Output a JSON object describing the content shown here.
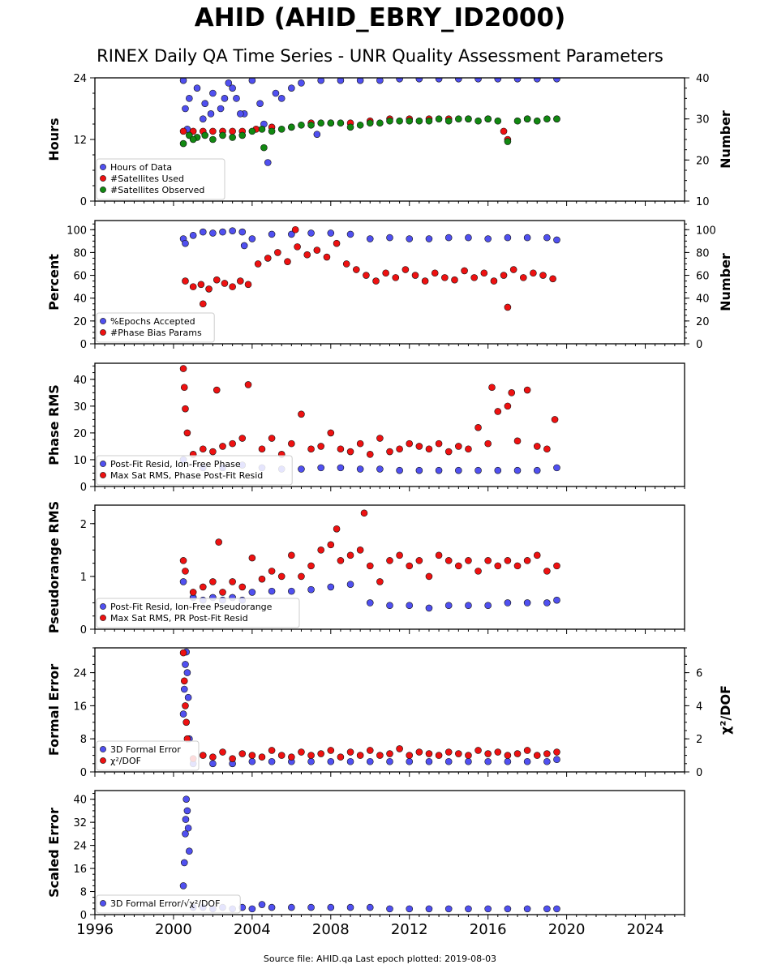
{
  "header": {
    "title": "AHID (AHID_EBRY_ID2000)",
    "subtitle": "RINEX Daily QA Time Series - UNR Quality Assessment Parameters"
  },
  "footer": {
    "text": "Source file: AHID.qa Last epoch plotted: 2019-08-03"
  },
  "colors": {
    "blue": "#5050f0",
    "red": "#ee1111",
    "green": "#118811"
  },
  "chart_data": [
    {
      "type": "scatter",
      "ylabel": "Hours",
      "y2label": "Number",
      "xlim": [
        1996,
        2026
      ],
      "ylim": [
        0,
        24
      ],
      "y2lim": [
        10,
        40
      ],
      "yticks": [
        "0",
        "12",
        "24"
      ],
      "y2ticks": [
        "10",
        "20",
        "30",
        "40"
      ],
      "series": [
        {
          "name": "Hours of Data",
          "color": "blue",
          "axis": "left",
          "x": [
            2000.5,
            2000.8,
            2001.2,
            2001.6,
            2002.0,
            2002.4,
            2002.8,
            2003.2,
            2003.6,
            2004.0,
            2004.4,
            2004.8,
            2005.5,
            2006.5,
            2007.5,
            2008.5,
            2009.5,
            2010.5,
            2011.5,
            2012.5,
            2013.5,
            2014.5,
            2015.5,
            2016.5,
            2017.5,
            2018.5,
            2019.5,
            2000.6,
            2001.5,
            2002.6,
            2003.4,
            2004.6,
            2005.2,
            2006.0,
            2007.3,
            2000.7,
            2001.9,
            2003.0
          ],
          "y": [
            23.5,
            20,
            22,
            19,
            21,
            18,
            23,
            20,
            17,
            23.5,
            19,
            7.5,
            20,
            23,
            23.5,
            23.5,
            23.5,
            23.5,
            23.8,
            23.8,
            23.8,
            23.8,
            23.8,
            23.8,
            23.8,
            23.8,
            23.8,
            18,
            16,
            20,
            17,
            15,
            21,
            22,
            13,
            14,
            17,
            22
          ]
        },
        {
          "name": "#Satellites Used",
          "color": "red",
          "axis": "right",
          "x": [
            2000.5,
            2001.0,
            2001.5,
            2002.0,
            2002.5,
            2003.0,
            2003.5,
            2004.2,
            2005.0,
            2006.0,
            2007.0,
            2008.0,
            2009.0,
            2010.0,
            2011.0,
            2012.0,
            2013.0,
            2014.0,
            2015.0,
            2016.0,
            2016.8,
            2017.0,
            2018.0,
            2019.5
          ],
          "y": [
            27,
            27,
            27,
            27,
            27,
            27,
            27,
            27.5,
            28,
            28,
            29,
            29,
            29,
            29.5,
            30,
            30,
            30,
            30,
            30,
            30,
            27,
            25,
            30,
            30
          ]
        },
        {
          "name": "#Satellites Observed",
          "color": "green",
          "axis": "right",
          "x": [
            2000.5,
            2000.8,
            2001.2,
            2001.6,
            2002.0,
            2002.5,
            2003.0,
            2003.5,
            2004.0,
            2004.5,
            2005.0,
            2005.5,
            2006.0,
            2006.5,
            2007.0,
            2007.5,
            2008.0,
            2008.5,
            2009.0,
            2009.5,
            2010.0,
            2010.5,
            2011.0,
            2011.5,
            2012.0,
            2012.5,
            2013.0,
            2013.5,
            2014.0,
            2014.5,
            2015.0,
            2015.5,
            2016.0,
            2016.5,
            2017.0,
            2017.5,
            2018.0,
            2018.5,
            2019.0,
            2019.5,
            2004.6,
            2001.0
          ],
          "y": [
            24,
            26,
            25.5,
            26,
            25,
            26,
            25.5,
            26,
            27,
            27.5,
            27,
            27.5,
            28,
            28.5,
            28.5,
            29,
            29,
            29,
            28,
            28.5,
            29,
            29,
            29.5,
            29.5,
            29.5,
            29.5,
            29.5,
            30,
            29.5,
            30,
            30,
            29.5,
            30,
            29.5,
            24.5,
            29.5,
            30,
            29.5,
            30,
            30,
            23,
            25
          ]
        }
      ]
    },
    {
      "type": "scatter",
      "ylabel": "Percent",
      "y2label": "Number",
      "xlim": [
        1996,
        2026
      ],
      "ylim": [
        0,
        108
      ],
      "y2lim": [
        0,
        108
      ],
      "yticks": [
        "0",
        "20",
        "40",
        "60",
        "80",
        "100"
      ],
      "y2ticks": [
        "0",
        "20",
        "40",
        "60",
        "80",
        "100"
      ],
      "series": [
        {
          "name": "%Epochs Accepted",
          "color": "blue",
          "axis": "left",
          "x": [
            2000.5,
            2001.0,
            2001.5,
            2002.0,
            2002.5,
            2003.0,
            2003.5,
            2004.0,
            2005.0,
            2006.0,
            2007.0,
            2008.0,
            2009.0,
            2010.0,
            2011.0,
            2012.0,
            2013.0,
            2014.0,
            2015.0,
            2016.0,
            2017.0,
            2018.0,
            2019.0,
            2019.5,
            2000.6,
            2003.6
          ],
          "y": [
            92,
            95,
            98,
            97,
            98,
            99,
            98,
            92,
            96,
            96,
            97,
            97,
            96,
            92,
            93,
            92,
            92,
            93,
            93,
            92,
            93,
            93,
            93,
            91,
            88,
            86
          ]
        },
        {
          "name": "#Phase Bias Params",
          "color": "red",
          "axis": "right",
          "x": [
            2000.6,
            2001.0,
            2001.4,
            2001.8,
            2002.2,
            2002.6,
            2003.0,
            2003.4,
            2003.8,
            2004.3,
            2004.8,
            2005.3,
            2005.8,
            2006.3,
            2006.8,
            2007.3,
            2007.8,
            2008.3,
            2008.8,
            2009.3,
            2009.8,
            2010.3,
            2010.8,
            2011.3,
            2011.8,
            2012.3,
            2012.8,
            2013.3,
            2013.8,
            2014.3,
            2014.8,
            2015.3,
            2015.8,
            2016.3,
            2016.8,
            2017.0,
            2017.3,
            2017.8,
            2018.3,
            2018.8,
            2019.3,
            2001.5,
            2006.2
          ],
          "y": [
            55,
            50,
            52,
            48,
            56,
            53,
            50,
            55,
            52,
            70,
            75,
            80,
            72,
            85,
            78,
            82,
            76,
            88,
            70,
            65,
            60,
            55,
            62,
            58,
            65,
            60,
            55,
            62,
            58,
            56,
            64,
            58,
            62,
            55,
            60,
            32,
            65,
            58,
            62,
            60,
            57,
            35,
            100
          ]
        }
      ]
    },
    {
      "type": "scatter",
      "ylabel": "Phase RMS",
      "xlim": [
        1996,
        2026
      ],
      "ylim": [
        0,
        46
      ],
      "yticks": [
        "0",
        "10",
        "20",
        "30",
        "40"
      ],
      "series": [
        {
          "name": "Post-Fit Resid, Ion-Free Phase",
          "color": "blue",
          "axis": "left",
          "x": [
            2000.5,
            2001.5,
            2002.5,
            2003.5,
            2004.5,
            2005.5,
            2006.5,
            2007.5,
            2008.5,
            2009.5,
            2010.5,
            2011.5,
            2012.5,
            2013.5,
            2014.5,
            2015.5,
            2016.5,
            2017.5,
            2018.5,
            2019.5
          ],
          "y": [
            10,
            7,
            7,
            8,
            7,
            6.5,
            6.5,
            7,
            7,
            6.5,
            6.5,
            6,
            6,
            6,
            6,
            6,
            6,
            6,
            6,
            7
          ]
        },
        {
          "name": "Max Sat RMS, Phase Post-Fit Resid",
          "color": "red",
          "axis": "left",
          "x": [
            2000.5,
            2000.55,
            2000.6,
            2000.7,
            2001.0,
            2001.5,
            2002.0,
            2002.2,
            2002.5,
            2003.0,
            2003.5,
            2003.8,
            2004.5,
            2005.0,
            2005.5,
            2006.0,
            2006.5,
            2007.0,
            2007.5,
            2008.0,
            2008.5,
            2009.0,
            2009.5,
            2010.0,
            2010.5,
            2011.0,
            2011.5,
            2012.0,
            2012.5,
            2013.0,
            2013.5,
            2014.0,
            2014.5,
            2015.0,
            2015.5,
            2016.0,
            2016.2,
            2016.5,
            2017.0,
            2017.2,
            2017.5,
            2018.0,
            2018.5,
            2019.0,
            2019.4
          ],
          "y": [
            44,
            37,
            29,
            20,
            12,
            14,
            13,
            36,
            15,
            16,
            18,
            38,
            14,
            18,
            12,
            16,
            27,
            14,
            15,
            20,
            14,
            13,
            16,
            12,
            18,
            13,
            14,
            16,
            15,
            14,
            16,
            13,
            15,
            14,
            22,
            16,
            37,
            28,
            30,
            35,
            17,
            36,
            15,
            14,
            25
          ]
        }
      ]
    },
    {
      "type": "scatter",
      "ylabel": "Pseudorange RMS",
      "xlim": [
        1996,
        2026
      ],
      "ylim": [
        0,
        2.35
      ],
      "yticks": [
        "0",
        "1",
        "2"
      ],
      "series": [
        {
          "name": "Post-Fit Resid, Ion-Free Pseudorange",
          "color": "blue",
          "axis": "left",
          "x": [
            2000.5,
            2001.0,
            2001.5,
            2002.0,
            2002.5,
            2003.0,
            2003.5,
            2004.0,
            2005.0,
            2006.0,
            2007.0,
            2008.0,
            2009.0,
            2010.0,
            2011.0,
            2012.0,
            2013.0,
            2014.0,
            2015.0,
            2016.0,
            2017.0,
            2018.0,
            2019.0,
            2019.5
          ],
          "y": [
            0.9,
            0.6,
            0.55,
            0.6,
            0.55,
            0.6,
            0.55,
            0.7,
            0.72,
            0.72,
            0.75,
            0.8,
            0.85,
            0.5,
            0.45,
            0.45,
            0.4,
            0.45,
            0.45,
            0.45,
            0.5,
            0.5,
            0.5,
            0.55
          ]
        },
        {
          "name": "Max Sat RMS, PR Post-Fit Resid",
          "color": "red",
          "axis": "left",
          "x": [
            2000.5,
            2000.6,
            2001.0,
            2001.5,
            2002.0,
            2002.3,
            2002.5,
            2003.0,
            2003.5,
            2004.0,
            2004.5,
            2005.0,
            2005.5,
            2006.0,
            2006.5,
            2007.0,
            2007.5,
            2008.0,
            2008.3,
            2008.5,
            2009.0,
            2009.5,
            2009.7,
            2010.0,
            2010.5,
            2011.0,
            2011.5,
            2012.0,
            2012.5,
            2013.0,
            2013.5,
            2014.0,
            2014.5,
            2015.0,
            2015.5,
            2016.0,
            2016.5,
            2017.0,
            2017.5,
            2018.0,
            2018.5,
            2019.0,
            2019.5
          ],
          "y": [
            1.3,
            1.1,
            0.7,
            0.8,
            0.9,
            1.65,
            0.7,
            0.9,
            0.8,
            1.35,
            0.95,
            1.1,
            1.0,
            1.4,
            1.0,
            1.2,
            1.5,
            1.6,
            1.9,
            1.3,
            1.4,
            1.5,
            2.2,
            1.2,
            0.9,
            1.3,
            1.4,
            1.2,
            1.3,
            1.0,
            1.4,
            1.3,
            1.2,
            1.3,
            1.1,
            1.3,
            1.2,
            1.3,
            1.2,
            1.3,
            1.4,
            1.1,
            1.2
          ]
        }
      ]
    },
    {
      "type": "scatter",
      "ylabel": "Formal Error",
      "y2label": "χ²/DOF",
      "xlim": [
        1996,
        2026
      ],
      "ylim": [
        0,
        30
      ],
      "y2lim": [
        0,
        7.5
      ],
      "yticks": [
        "0",
        "8",
        "16",
        "24"
      ],
      "y2ticks": [
        "0",
        "2",
        "4",
        "6"
      ],
      "series": [
        {
          "name": "3D Formal Error",
          "color": "blue",
          "axis": "left",
          "x": [
            2000.5,
            2000.55,
            2000.6,
            2000.65,
            2000.7,
            2000.75,
            2000.8,
            2001.0,
            2002.0,
            2003.0,
            2004.0,
            2005.0,
            2006.0,
            2007.0,
            2008.0,
            2009.0,
            2010.0,
            2011.0,
            2012.0,
            2013.0,
            2014.0,
            2015.0,
            2016.0,
            2017.0,
            2018.0,
            2019.0,
            2019.5
          ],
          "y": [
            14,
            20,
            26,
            29,
            24,
            18,
            8,
            2,
            2,
            2,
            2.5,
            2.5,
            2.5,
            2.5,
            2.5,
            2.5,
            2.5,
            2.5,
            2.5,
            2.5,
            2.5,
            2.5,
            2.5,
            2.5,
            2.5,
            2.5,
            3
          ]
        },
        {
          "name": "χ²/DOF",
          "color": "red",
          "axis": "right",
          "x": [
            2000.5,
            2000.55,
            2000.6,
            2000.65,
            2000.7,
            2001.0,
            2001.5,
            2002.0,
            2002.5,
            2003.0,
            2003.5,
            2004.0,
            2004.5,
            2005.0,
            2005.5,
            2006.0,
            2006.5,
            2007.0,
            2007.5,
            2008.0,
            2008.5,
            2009.0,
            2009.5,
            2010.0,
            2010.5,
            2011.0,
            2011.5,
            2012.0,
            2012.5,
            2013.0,
            2013.5,
            2014.0,
            2014.5,
            2015.0,
            2015.5,
            2016.0,
            2016.5,
            2017.0,
            2017.5,
            2018.0,
            2018.5,
            2019.0,
            2019.5
          ],
          "y": [
            7.2,
            5.5,
            4.0,
            3.0,
            2.0,
            0.8,
            1.0,
            0.9,
            1.2,
            0.8,
            1.1,
            1.0,
            0.9,
            1.3,
            1.0,
            0.9,
            1.2,
            1.0,
            1.1,
            1.3,
            0.9,
            1.2,
            1.0,
            1.3,
            1.0,
            1.1,
            1.4,
            1.0,
            1.2,
            1.1,
            1.0,
            1.2,
            1.1,
            1.0,
            1.3,
            1.1,
            1.2,
            1.0,
            1.1,
            1.3,
            1.0,
            1.1,
            1.2
          ]
        }
      ]
    },
    {
      "type": "scatter",
      "ylabel": "Scaled Error",
      "xlim": [
        1996,
        2026
      ],
      "ylim": [
        0,
        43
      ],
      "yticks": [
        "0",
        "8",
        "16",
        "24",
        "32",
        "40"
      ],
      "xticks": [
        "1996",
        "2000",
        "2004",
        "2008",
        "2012",
        "2016",
        "2020",
        "2024"
      ],
      "series": [
        {
          "name": "3D Formal Error/√χ²/DOF",
          "color": "blue",
          "axis": "left",
          "x": [
            2000.5,
            2000.55,
            2000.6,
            2000.62,
            2000.65,
            2000.7,
            2000.75,
            2000.8,
            2001.0,
            2001.5,
            2002.0,
            2002.5,
            2003.0,
            2003.5,
            2004.0,
            2004.5,
            2005.0,
            2006.0,
            2007.0,
            2008.0,
            2009.0,
            2010.0,
            2011.0,
            2012.0,
            2013.0,
            2014.0,
            2015.0,
            2016.0,
            2017.0,
            2018.0,
            2019.0,
            2019.5
          ],
          "y": [
            10,
            18,
            28,
            33,
            40,
            36,
            30,
            22,
            2.5,
            2.5,
            2,
            2.5,
            2,
            2.5,
            2,
            3.5,
            2.5,
            2.5,
            2.5,
            2.5,
            2.5,
            2.5,
            2,
            2,
            2,
            2,
            2,
            2,
            2,
            2,
            2,
            2
          ]
        }
      ]
    }
  ]
}
